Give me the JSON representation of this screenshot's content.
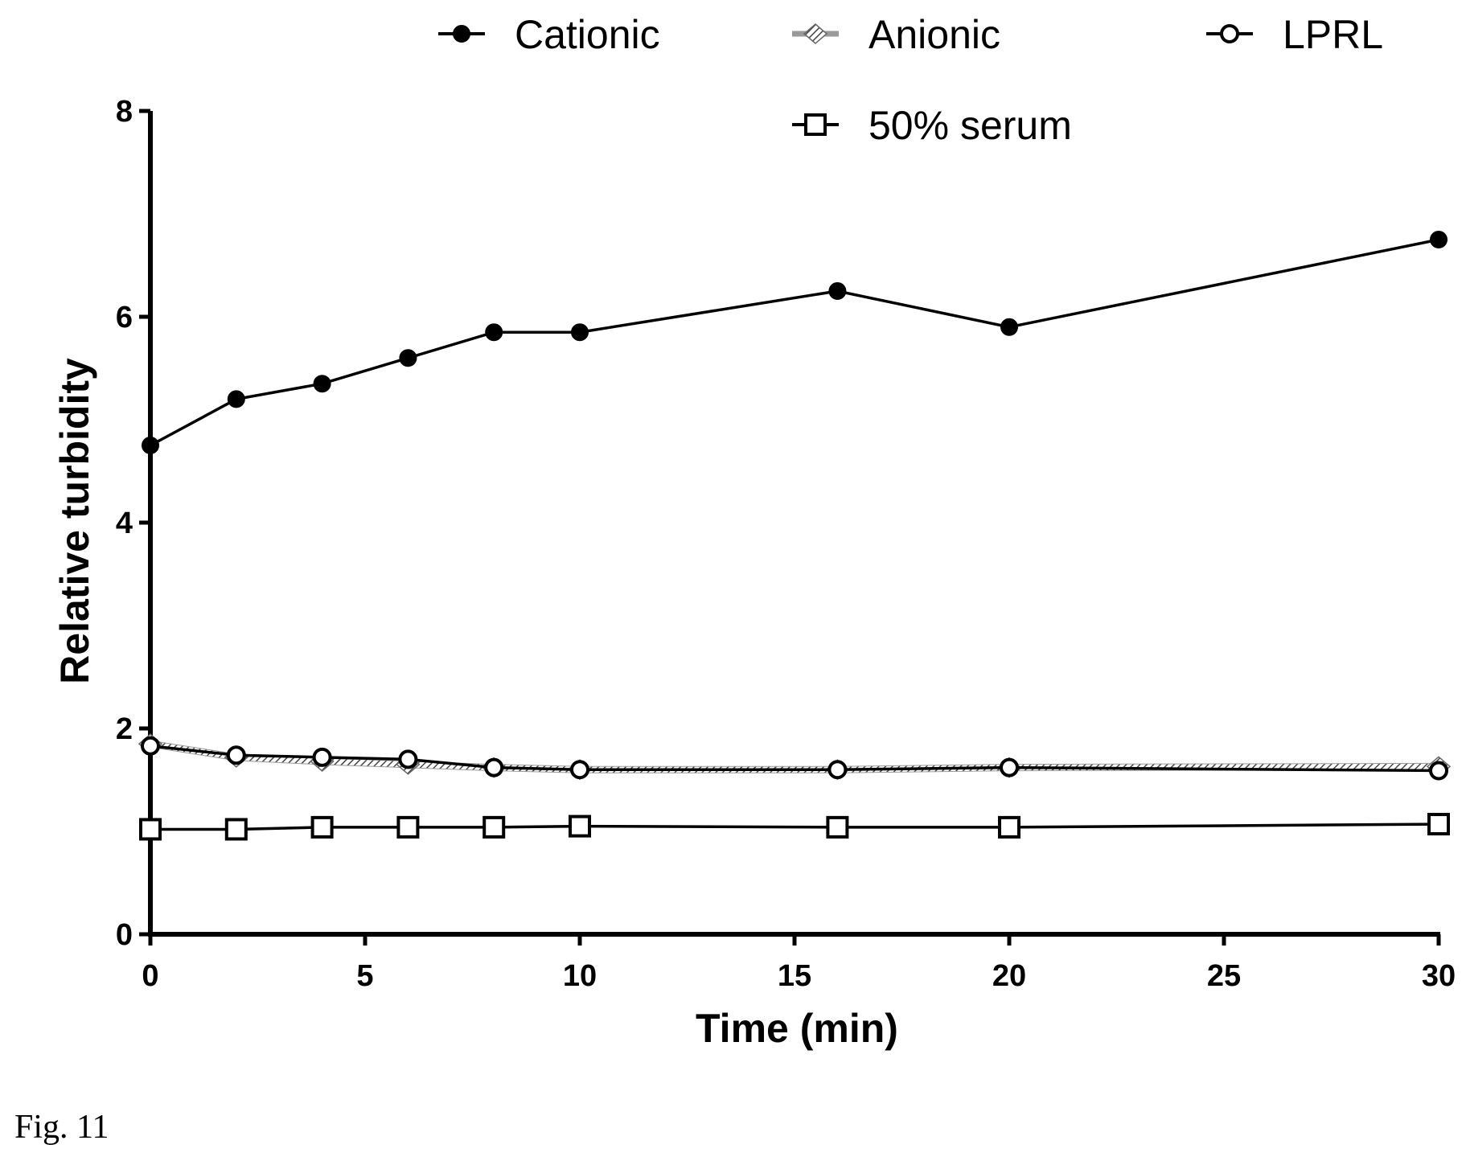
{
  "figure": {
    "caption": "Fig. 11"
  },
  "chart_data": {
    "type": "line",
    "xlabel": "Time (min)",
    "ylabel": "Relative turbidity",
    "xlim": [
      0,
      30
    ],
    "ylim": [
      0,
      8
    ],
    "x_ticks": [
      "0",
      "5",
      "10",
      "15",
      "20",
      "25",
      "30"
    ],
    "y_ticks": [
      "0",
      "2",
      "4",
      "6",
      "8"
    ],
    "grid": false,
    "legend_position": "top",
    "series": [
      {
        "name": "Cationic",
        "marker": "filled-circle",
        "color": "#000000",
        "x": [
          0,
          2,
          4,
          6,
          8,
          10,
          16,
          20,
          30
        ],
        "y": [
          4.75,
          5.2,
          5.35,
          5.6,
          5.85,
          5.85,
          6.25,
          5.9,
          6.75
        ]
      },
      {
        "name": "Anionic",
        "marker": "hatched-diamond",
        "color": "#7a7a7a",
        "x": [
          0,
          2,
          4,
          6,
          8,
          10,
          16,
          20,
          30
        ],
        "y": [
          1.85,
          1.72,
          1.68,
          1.65,
          1.62,
          1.6,
          1.6,
          1.62,
          1.63
        ]
      },
      {
        "name": "LPRL",
        "marker": "open-circle",
        "color": "#000000",
        "x": [
          0,
          2,
          4,
          6,
          8,
          10,
          16,
          20,
          30
        ],
        "y": [
          1.83,
          1.74,
          1.72,
          1.7,
          1.62,
          1.6,
          1.6,
          1.62,
          1.59
        ]
      },
      {
        "name": "50% serum",
        "marker": "open-square",
        "color": "#000000",
        "x": [
          0,
          2,
          4,
          6,
          8,
          10,
          16,
          20,
          30
        ],
        "y": [
          1.02,
          1.02,
          1.04,
          1.04,
          1.04,
          1.05,
          1.04,
          1.04,
          1.07
        ]
      }
    ]
  }
}
